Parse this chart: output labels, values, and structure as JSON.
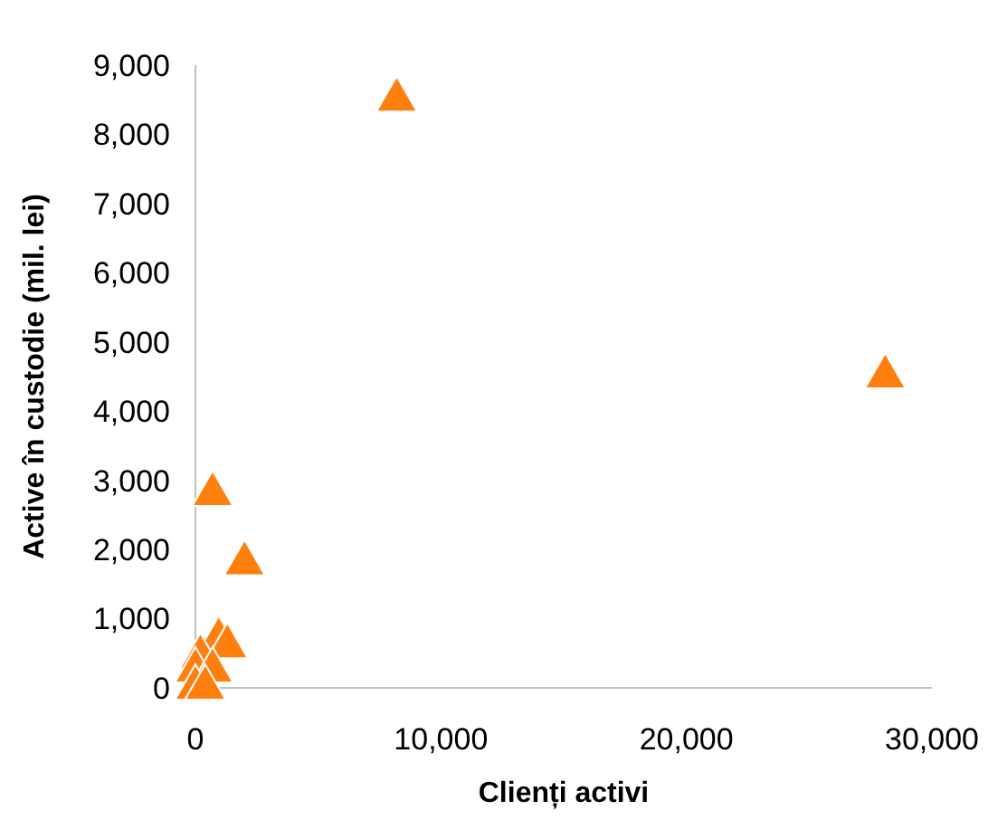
{
  "chart_data": {
    "type": "scatter",
    "xlabel": "Clienți activi",
    "ylabel": "Active în custodie (mil. lei)",
    "x": [
      8200,
      28100,
      700,
      2000,
      950,
      1300,
      200,
      0,
      700,
      0,
      400
    ],
    "series": [
      {
        "color": "#ff7f0e",
        "values": [
          8500,
          4500,
          2800,
          1800,
          700,
          600,
          450,
          250,
          250,
          0,
          0
        ]
      }
    ],
    "xlim": [
      0,
      30000
    ],
    "ylim": [
      0,
      9000
    ],
    "xticks": [
      {
        "value": 0,
        "label": "0"
      },
      {
        "value": 10000,
        "label": "10,000"
      },
      {
        "value": 20000,
        "label": "20,000"
      },
      {
        "value": 30000,
        "label": "30,000"
      }
    ],
    "yticks": [
      {
        "value": 0,
        "label": "0"
      },
      {
        "value": 1000,
        "label": "1,000"
      },
      {
        "value": 2000,
        "label": "2,000"
      },
      {
        "value": 3000,
        "label": "3,000"
      },
      {
        "value": 4000,
        "label": "4,000"
      },
      {
        "value": 5000,
        "label": "5,000"
      },
      {
        "value": 6000,
        "label": "6,000"
      },
      {
        "value": 7000,
        "label": "7,000"
      },
      {
        "value": 8000,
        "label": "8,000"
      },
      {
        "value": 9000,
        "label": "9,000"
      }
    ],
    "marker": "triangle",
    "grid": false
  }
}
